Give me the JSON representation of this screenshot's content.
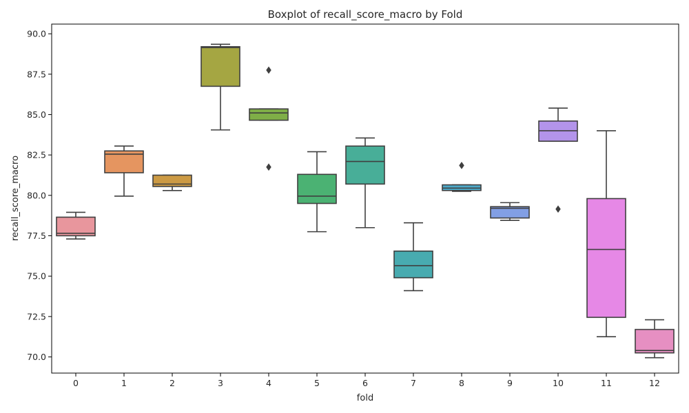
{
  "chart_data": {
    "type": "boxplot",
    "title": "Boxplot of recall_score_macro by Fold",
    "xlabel": "fold",
    "ylabel": "recall_score_macro",
    "ylim": [
      69,
      90.6
    ],
    "yticks": [
      70.0,
      72.5,
      75.0,
      77.5,
      80.0,
      82.5,
      85.0,
      87.5,
      90.0
    ],
    "ytick_labels": [
      "70.0",
      "72.5",
      "75.0",
      "77.5",
      "80.0",
      "82.5",
      "85.0",
      "87.5",
      "90.0"
    ],
    "categories": [
      "0",
      "1",
      "2",
      "3",
      "4",
      "5",
      "6",
      "7",
      "8",
      "9",
      "10",
      "11",
      "12"
    ],
    "grid": false,
    "boxes": [
      {
        "fold": "0",
        "whisker_low": 77.3,
        "q1": 77.5,
        "median": 77.65,
        "q3": 78.65,
        "whisker_high": 78.95,
        "outliers": [],
        "color": "#e8969d"
      },
      {
        "fold": "1",
        "whisker_low": 79.95,
        "q1": 81.4,
        "median": 82.55,
        "q3": 82.75,
        "whisker_high": 83.05,
        "outliers": [],
        "color": "#e59560"
      },
      {
        "fold": "2",
        "whisker_low": 80.3,
        "q1": 80.55,
        "median": 80.7,
        "q3": 81.25,
        "whisker_high": 81.25,
        "outliers": [],
        "color": "#cc9a44"
      },
      {
        "fold": "3",
        "whisker_low": 84.05,
        "q1": 86.75,
        "median": 89.15,
        "q3": 89.2,
        "whisker_high": 89.35,
        "outliers": [],
        "color": "#a5a642"
      },
      {
        "fold": "4",
        "whisker_low": 84.65,
        "q1": 84.65,
        "median": 85.1,
        "q3": 85.35,
        "whisker_high": 85.35,
        "outliers": [
          87.75,
          81.75
        ],
        "color": "#7fae47"
      },
      {
        "fold": "5",
        "whisker_low": 77.75,
        "q1": 79.5,
        "median": 79.95,
        "q3": 81.3,
        "whisker_high": 82.7,
        "outliers": [],
        "color": "#4bb273"
      },
      {
        "fold": "6",
        "whisker_low": 78.0,
        "q1": 80.7,
        "median": 82.1,
        "q3": 83.05,
        "whisker_high": 83.55,
        "outliers": [],
        "color": "#48ae98"
      },
      {
        "fold": "7",
        "whisker_low": 74.1,
        "q1": 74.9,
        "median": 75.65,
        "q3": 76.55,
        "whisker_high": 78.3,
        "outliers": [],
        "color": "#48abb0"
      },
      {
        "fold": "8",
        "whisker_low": 80.25,
        "q1": 80.3,
        "median": 80.45,
        "q3": 80.65,
        "whisker_high": 80.65,
        "outliers": [
          81.85
        ],
        "color": "#4da9c8"
      },
      {
        "fold": "9",
        "whisker_low": 78.45,
        "q1": 78.6,
        "median": 79.2,
        "q3": 79.3,
        "whisker_high": 79.55,
        "outliers": [],
        "color": "#829fe4"
      },
      {
        "fold": "10",
        "whisker_low": 83.35,
        "q1": 83.35,
        "median": 84.0,
        "q3": 84.6,
        "whisker_high": 85.4,
        "outliers": [
          79.15
        ],
        "color": "#b394ea"
      },
      {
        "fold": "11",
        "whisker_low": 71.25,
        "q1": 72.45,
        "median": 76.65,
        "q3": 79.8,
        "whisker_high": 84.0,
        "outliers": [],
        "color": "#e688e6"
      },
      {
        "fold": "12",
        "whisker_low": 69.95,
        "q1": 70.25,
        "median": 70.4,
        "q3": 71.7,
        "whisker_high": 72.3,
        "outliers": [],
        "color": "#e68fc2"
      }
    ],
    "line_color": "#3f3f3f",
    "spine_color": "#000000"
  }
}
